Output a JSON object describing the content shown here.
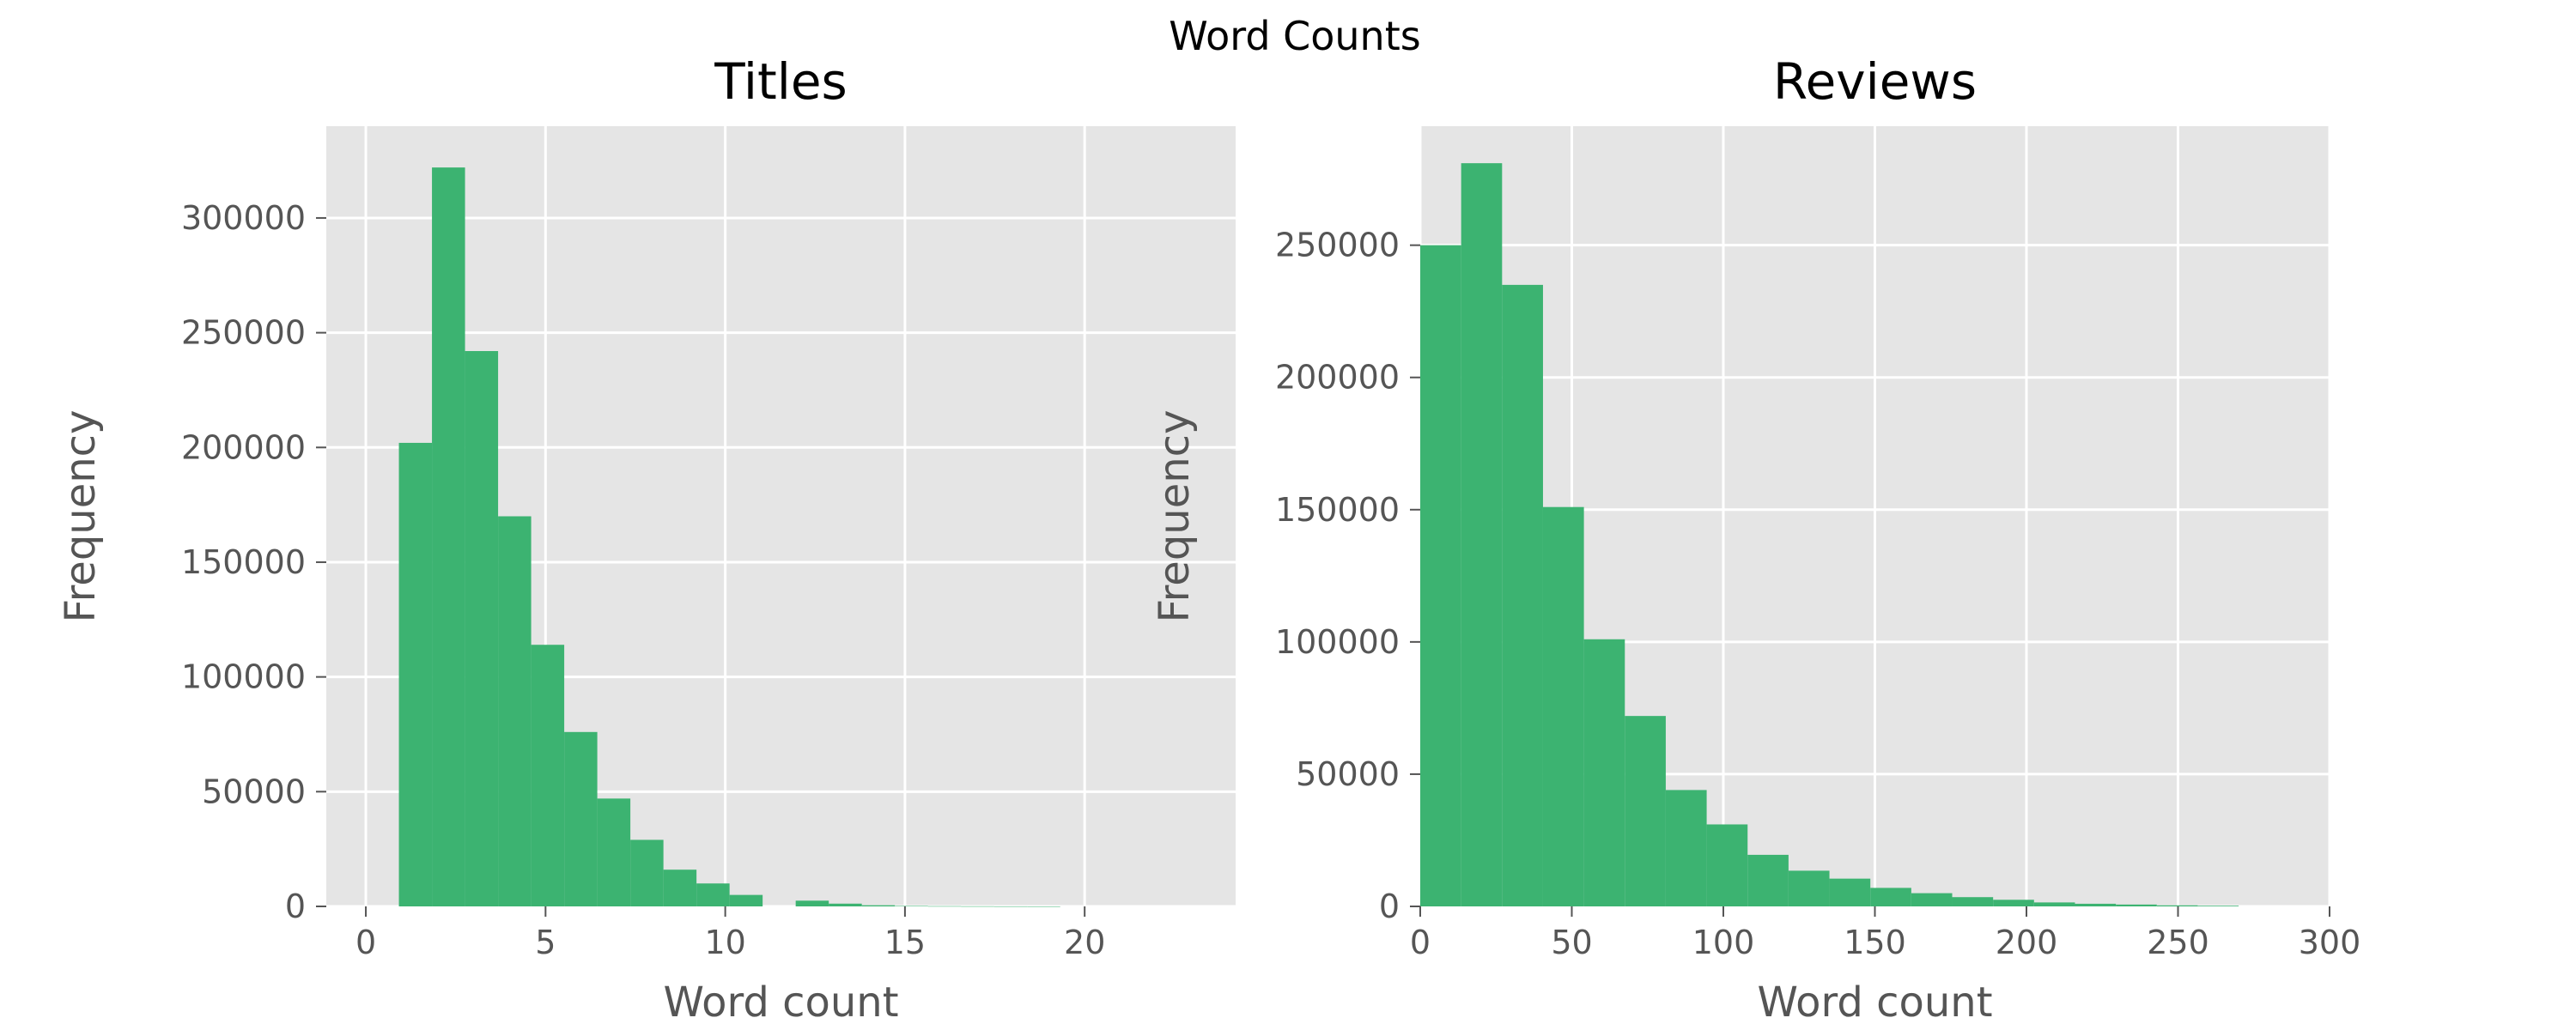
{
  "figure": {
    "suptitle": "Word Counts",
    "colors": {
      "bar": "#3cb371",
      "panel_bg": "#e5e5e5",
      "grid": "#ffffff",
      "tick_text": "#555555",
      "label_text": "#555555",
      "title_text": "#000000"
    }
  },
  "chart_data": [
    {
      "type": "bar",
      "subtype": "histogram",
      "title": "Titles",
      "xlabel": "Word count",
      "ylabel": "Frequency",
      "xlim": [
        -1.1,
        24.2
      ],
      "ylim": [
        0,
        340000
      ],
      "xticks": [
        0,
        5,
        10,
        15,
        20
      ],
      "yticks": [
        0,
        50000,
        100000,
        150000,
        200000,
        250000,
        300000
      ],
      "grid": true,
      "bin_width": 0.92,
      "bins": [
        {
          "x0": 0.92,
          "value": 202000
        },
        {
          "x0": 1.84,
          "value": 322000
        },
        {
          "x0": 2.76,
          "value": 242000
        },
        {
          "x0": 3.68,
          "value": 170000
        },
        {
          "x0": 4.6,
          "value": 114000
        },
        {
          "x0": 5.52,
          "value": 76000
        },
        {
          "x0": 6.44,
          "value": 47000
        },
        {
          "x0": 7.36,
          "value": 29000
        },
        {
          "x0": 8.28,
          "value": 16000
        },
        {
          "x0": 9.2,
          "value": 10000
        },
        {
          "x0": 10.12,
          "value": 5000
        },
        {
          "x0": 11.04,
          "value": 0
        },
        {
          "x0": 11.96,
          "value": 2500
        },
        {
          "x0": 12.88,
          "value": 1200
        },
        {
          "x0": 13.8,
          "value": 500
        },
        {
          "x0": 14.72,
          "value": 200
        },
        {
          "x0": 15.64,
          "value": 100
        },
        {
          "x0": 16.56,
          "value": 50
        },
        {
          "x0": 17.48,
          "value": 20
        },
        {
          "x0": 18.4,
          "value": 10
        }
      ]
    },
    {
      "type": "bar",
      "subtype": "histogram",
      "title": "Reviews",
      "xlabel": "Word count",
      "ylabel": "Frequency",
      "xlim": [
        0,
        300
      ],
      "ylim": [
        0,
        295000
      ],
      "xticks": [
        0,
        50,
        100,
        150,
        200,
        250,
        300
      ],
      "yticks": [
        0,
        50000,
        100000,
        150000,
        200000,
        250000
      ],
      "grid": true,
      "bin_width": 13.5,
      "bins": [
        {
          "x0": 0,
          "value": 250000
        },
        {
          "x0": 13.5,
          "value": 281000
        },
        {
          "x0": 27,
          "value": 235000
        },
        {
          "x0": 40.5,
          "value": 151000
        },
        {
          "x0": 54,
          "value": 101000
        },
        {
          "x0": 67.5,
          "value": 72000
        },
        {
          "x0": 81,
          "value": 44000
        },
        {
          "x0": 94.5,
          "value": 31000
        },
        {
          "x0": 108,
          "value": 19500
        },
        {
          "x0": 121.5,
          "value": 13500
        },
        {
          "x0": 135,
          "value": 10500
        },
        {
          "x0": 148.5,
          "value": 7000
        },
        {
          "x0": 162,
          "value": 5000
        },
        {
          "x0": 175.5,
          "value": 3500
        },
        {
          "x0": 189,
          "value": 2500
        },
        {
          "x0": 202.5,
          "value": 1500
        },
        {
          "x0": 216,
          "value": 1000
        },
        {
          "x0": 229.5,
          "value": 700
        },
        {
          "x0": 243,
          "value": 400
        },
        {
          "x0": 256.5,
          "value": 250
        }
      ]
    }
  ]
}
